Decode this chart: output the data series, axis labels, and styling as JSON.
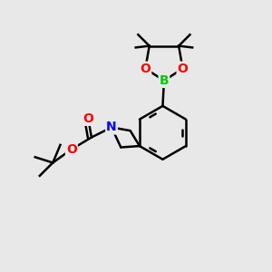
{
  "background_color": "#e8e8e8",
  "atom_colors": {
    "C": "#000000",
    "O": "#ff0000",
    "N": "#0000ff",
    "B": "#00cc00"
  },
  "bond_color": "#000000",
  "bond_width": 1.8,
  "font_size_atoms": 10,
  "fig_size": [
    3.0,
    3.0
  ],
  "dpi": 100
}
